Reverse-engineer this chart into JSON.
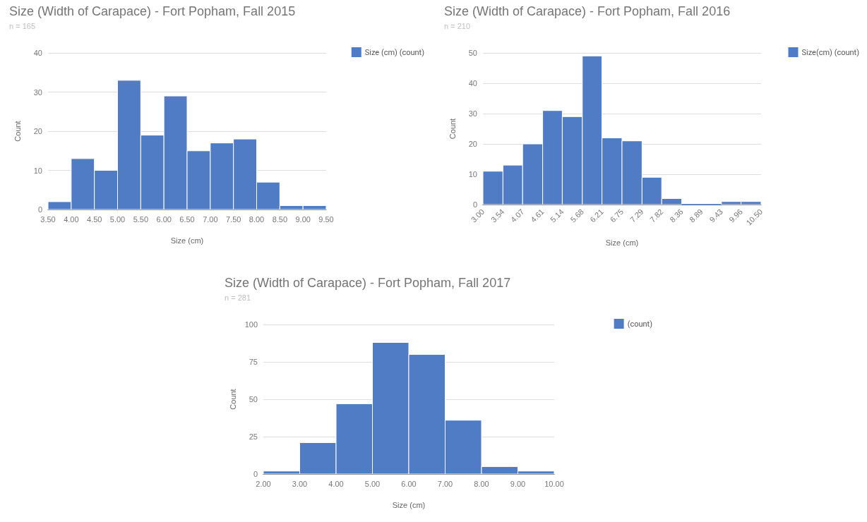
{
  "chart_data": [
    {
      "type": "histogram",
      "title": "Size (Width of Carapace) - Fort Popham, Fall 2015",
      "subtitle": "n = 165",
      "xlabel": "Size (cm)",
      "ylabel": "Count",
      "bins": [
        3.5,
        4.0,
        4.5,
        5.0,
        5.5,
        6.0,
        6.5,
        7.0,
        7.5,
        8.0,
        8.5,
        9.0,
        9.5
      ],
      "series": [
        {
          "name": "Size (cm) (count)",
          "color": "#4f7cc4",
          "values": [
            2,
            13,
            10,
            33,
            19,
            29,
            15,
            17,
            18,
            7,
            1,
            1
          ]
        }
      ],
      "xlim": [
        3.5,
        9.5
      ],
      "xticks": [
        {
          "value": 3.5,
          "label": "3.50"
        },
        {
          "value": 4.0,
          "label": "4.00"
        },
        {
          "value": 4.5,
          "label": "4.50"
        },
        {
          "value": 5.0,
          "label": "5.00"
        },
        {
          "value": 5.5,
          "label": "5.50"
        },
        {
          "value": 6.0,
          "label": "6.00"
        },
        {
          "value": 6.5,
          "label": "6.50"
        },
        {
          "value": 7.0,
          "label": "7.00"
        },
        {
          "value": 7.5,
          "label": "7.50"
        },
        {
          "value": 8.0,
          "label": "8.00"
        },
        {
          "value": 8.5,
          "label": "8.50"
        },
        {
          "value": 9.0,
          "label": "9.00"
        },
        {
          "value": 9.5,
          "label": "9.50"
        }
      ],
      "ylim": [
        0,
        40
      ],
      "yticks": [
        0,
        10,
        20,
        30,
        40
      ],
      "grid": "y",
      "legend": "top right"
    },
    {
      "type": "histogram",
      "title": "Size (Width of Carapace) - Fort Popham, Fall 2016",
      "subtitle": "n = 210",
      "xlabel": "Size (cm)",
      "ylabel": "Count",
      "bins": [
        3.0,
        3.54,
        4.07,
        4.61,
        5.14,
        5.68,
        6.21,
        6.75,
        7.29,
        7.82,
        8.36,
        8.89,
        9.43,
        9.96,
        10.5
      ],
      "series": [
        {
          "name": "Size(cm) (count)",
          "color": "#4f7cc4",
          "values": [
            11,
            13,
            20,
            31,
            29,
            49,
            22,
            21,
            9,
            2,
            0,
            0,
            1,
            1
          ]
        }
      ],
      "xlim": [
        3.0,
        10.5
      ],
      "xticks": [
        {
          "value": 3.0,
          "label": "3.00"
        },
        {
          "value": 3.54,
          "label": "3.54"
        },
        {
          "value": 4.07,
          "label": "4.07"
        },
        {
          "value": 4.61,
          "label": "4.61"
        },
        {
          "value": 5.14,
          "label": "5.14"
        },
        {
          "value": 5.68,
          "label": "5.68"
        },
        {
          "value": 6.21,
          "label": "6.21"
        },
        {
          "value": 6.75,
          "label": "6.75"
        },
        {
          "value": 7.29,
          "label": "7.29"
        },
        {
          "value": 7.82,
          "label": "7.82"
        },
        {
          "value": 8.36,
          "label": "8.36"
        },
        {
          "value": 8.89,
          "label": "8.89"
        },
        {
          "value": 9.43,
          "label": "9.43"
        },
        {
          "value": 9.96,
          "label": "9.96"
        },
        {
          "value": 10.5,
          "label": "10.50"
        }
      ],
      "ylim": [
        0,
        50
      ],
      "yticks": [
        0,
        10,
        20,
        30,
        40,
        50
      ],
      "grid": "y",
      "legend": "top right"
    },
    {
      "type": "histogram",
      "title": "Size (Width of Carapace) - Fort Popham, Fall 2017",
      "subtitle": "n = 281",
      "xlabel": "Size (cm)",
      "ylabel": "Count",
      "bins": [
        2,
        3,
        4,
        5,
        6,
        7,
        8,
        9,
        10
      ],
      "series": [
        {
          "name": "(count)",
          "color": "#4f7cc4",
          "values": [
            2,
            21,
            47,
            88,
            80,
            36,
            5,
            2
          ]
        }
      ],
      "xlim": [
        2,
        10
      ],
      "xticks": [
        {
          "value": 2,
          "label": "2.00"
        },
        {
          "value": 3,
          "label": "3.00"
        },
        {
          "value": 4,
          "label": "4.00"
        },
        {
          "value": 5,
          "label": "5.00"
        },
        {
          "value": 6,
          "label": "6.00"
        },
        {
          "value": 7,
          "label": "7.00"
        },
        {
          "value": 8,
          "label": "8.00"
        },
        {
          "value": 9,
          "label": "9.00"
        },
        {
          "value": 10,
          "label": "10.00"
        }
      ],
      "ylim": [
        0,
        100
      ],
      "yticks": [
        0,
        25,
        50,
        75,
        100
      ],
      "grid": "y",
      "legend": "top right"
    }
  ]
}
